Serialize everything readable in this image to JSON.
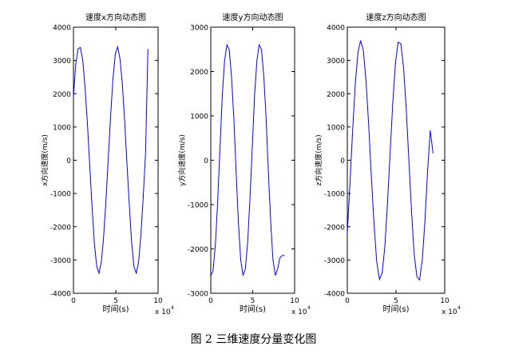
{
  "caption": "图 2  三维速度分量变化图",
  "chart_data": [
    {
      "type": "line",
      "title": "速度x方向动态图",
      "xlabel": "时间(s)",
      "ylabel": "x方向速度(m/s)",
      "x_multiplier_label": "x 10",
      "x_multiplier_exp": "4",
      "xlim": [
        0,
        10
      ],
      "ylim": [
        -4000,
        4000
      ],
      "xticks": [
        "0",
        "5",
        "10"
      ],
      "yticks": [
        "-4000",
        "-3000",
        "-2000",
        "-1000",
        "0",
        "1000",
        "2000",
        "3000",
        "4000"
      ],
      "grid": false,
      "series": [
        {
          "color": "#0000ff",
          "x": [
            0,
            0.27,
            0.55,
            0.82,
            1.1,
            1.37,
            1.65,
            1.92,
            2.2,
            2.47,
            2.75,
            3.02,
            3.3,
            3.57,
            3.85,
            4.12,
            4.4,
            4.67,
            4.95,
            5.22,
            5.5,
            5.77,
            6.05,
            6.32,
            6.6,
            6.87,
            7.15,
            7.42,
            7.7,
            7.97,
            8.25,
            8.52,
            8.8
          ],
          "y": [
            1900,
            2900,
            3350,
            3390,
            3000,
            2200,
            1100,
            -150,
            -1400,
            -2500,
            -3200,
            -3400,
            -3050,
            -2300,
            -1200,
            100,
            1350,
            2450,
            3200,
            3410,
            3050,
            2300,
            1200,
            -100,
            -1350,
            -2450,
            -3200,
            -3400,
            -3050,
            -2250,
            -1100,
            200,
            3350
          ]
        }
      ]
    },
    {
      "type": "line",
      "title": "速度y方向动态图",
      "xlabel": "时间(s)",
      "ylabel": "y方向速度(m/s)",
      "x_multiplier_label": "x 10",
      "x_multiplier_exp": "4",
      "xlim": [
        0,
        10
      ],
      "ylim": [
        -3000,
        3000
      ],
      "xticks": [
        "0",
        "5",
        "10"
      ],
      "yticks": [
        "-3000",
        "-2000",
        "-1000",
        "0",
        "1000",
        "2000",
        "3000"
      ],
      "grid": false,
      "series": [
        {
          "color": "#0000ff",
          "x": [
            0,
            0.27,
            0.55,
            0.82,
            1.1,
            1.37,
            1.65,
            1.92,
            2.2,
            2.47,
            2.75,
            3.02,
            3.3,
            3.57,
            3.85,
            4.12,
            4.4,
            4.67,
            4.95,
            5.22,
            5.5,
            5.77,
            6.05,
            6.32,
            6.6,
            6.87,
            7.15,
            7.42,
            7.7,
            7.97,
            8.25,
            8.52,
            8.8
          ],
          "y": [
            -2600,
            -2500,
            -1900,
            -950,
            300,
            1450,
            2250,
            2600,
            2500,
            1900,
            950,
            -250,
            -1400,
            -2250,
            -2600,
            -2450,
            -1850,
            -900,
            300,
            1450,
            2250,
            2600,
            2500,
            1900,
            950,
            -250,
            -1400,
            -2250,
            -2600,
            -2450,
            -2200,
            -2150,
            -2150
          ]
        }
      ]
    },
    {
      "type": "line",
      "title": "速度z方向动态图",
      "xlabel": "时间(s)",
      "ylabel": "z方向速度(m/s)",
      "x_multiplier_label": "x 10",
      "x_multiplier_exp": "4",
      "xlim": [
        0,
        10
      ],
      "ylim": [
        -4000,
        4000
      ],
      "xticks": [
        "0",
        "5",
        "10"
      ],
      "yticks": [
        "-4000",
        "-3000",
        "-2000",
        "-1000",
        "0",
        "1000",
        "2000",
        "3000",
        "4000"
      ],
      "grid": false,
      "series": [
        {
          "color": "#0000ff",
          "x": [
            0,
            0.27,
            0.55,
            0.82,
            1.1,
            1.37,
            1.65,
            1.92,
            2.2,
            2.47,
            2.75,
            3.02,
            3.3,
            3.57,
            3.85,
            4.12,
            4.4,
            4.67,
            4.95,
            5.22,
            5.5,
            5.77,
            6.05,
            6.32,
            6.6,
            6.87,
            7.15,
            7.42,
            7.7,
            7.97,
            8.25,
            8.52,
            8.8
          ],
          "y": [
            -2200,
            -700,
            900,
            2300,
            3250,
            3600,
            3300,
            2400,
            1050,
            -500,
            -1950,
            -3050,
            -3580,
            -3400,
            -2600,
            -1300,
            250,
            1750,
            2950,
            3550,
            3500,
            2800,
            1550,
            0,
            -1550,
            -2850,
            -3500,
            -3600,
            -3000,
            -1850,
            -300,
            900,
            200
          ]
        }
      ]
    }
  ]
}
